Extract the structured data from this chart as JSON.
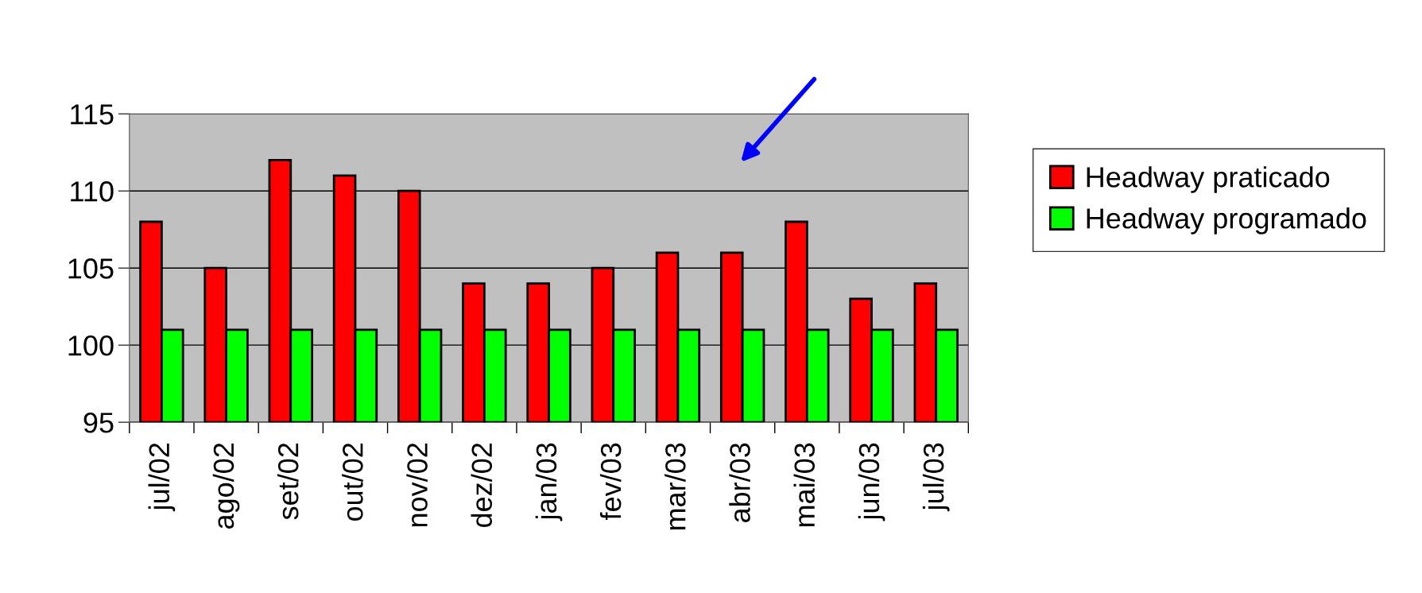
{
  "chart_data": {
    "type": "bar",
    "categories": [
      "jul/02",
      "ago/02",
      "set/02",
      "out/02",
      "nov/02",
      "dez/02",
      "jan/03",
      "fev/03",
      "mar/03",
      "abr/03",
      "mai/03",
      "jun/03",
      "jul/03"
    ],
    "series": [
      {
        "name": "Headway praticado",
        "color": "#ff0000",
        "values": [
          108,
          105,
          112,
          111,
          110,
          104,
          104,
          105,
          106,
          106,
          108,
          103,
          104
        ]
      },
      {
        "name": "Headway programado",
        "color": "#00ff00",
        "values": [
          101,
          101,
          101,
          101,
          101,
          101,
          101,
          101,
          101,
          101,
          101,
          101,
          101
        ]
      }
    ],
    "ylim": [
      95,
      115
    ],
    "yticks": [
      95,
      100,
      105,
      110,
      115
    ],
    "grid": "y",
    "legend": "right"
  }
}
